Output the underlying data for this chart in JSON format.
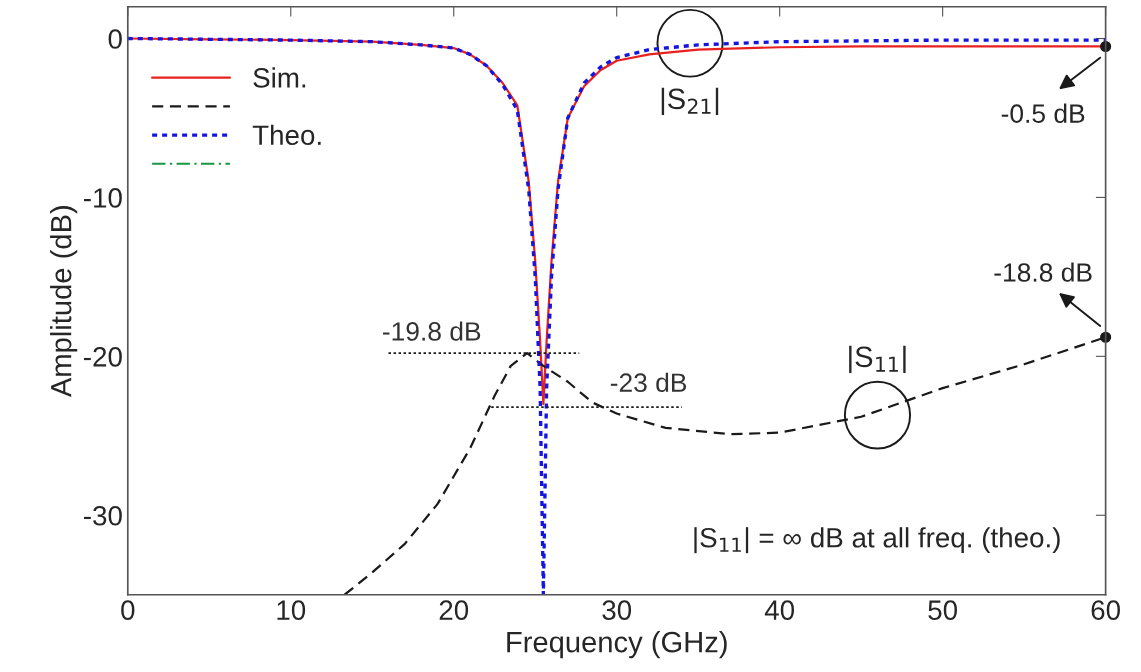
{
  "chart_data": {
    "type": "line",
    "xlabel": "Frequency (GHz)",
    "ylabel": "Amplitude (dB)",
    "xlim": [
      0,
      60
    ],
    "ylim": [
      -35,
      2
    ],
    "xticks": [
      0,
      10,
      20,
      30,
      40,
      50,
      60
    ],
    "yticks": [
      0,
      -10,
      -20,
      -30
    ],
    "grid": false,
    "legend": "top left",
    "series": [
      {
        "name": "Sim.",
        "color": "#e8201e",
        "line_style": "solid",
        "x": [
          0,
          5,
          10,
          15,
          18,
          20,
          21,
          22,
          23,
          23.9,
          24.6,
          25,
          25.3,
          25.5,
          25.7,
          26,
          26.4,
          27,
          28,
          29,
          30,
          32,
          35,
          40,
          45,
          50,
          55,
          60
        ],
        "values": [
          0,
          -0.05,
          -0.1,
          -0.2,
          -0.4,
          -0.6,
          -1,
          -1.7,
          -2.8,
          -4.2,
          -9,
          -14,
          -19,
          -23,
          -19,
          -14,
          -9,
          -5,
          -3,
          -2,
          -1.4,
          -1,
          -0.7,
          -0.55,
          -0.5,
          -0.5,
          -0.5,
          -0.5
        ]
      },
      {
        "color": "#1a1a1a",
        "line_style": "dashed",
        "x": [
          13.3,
          15,
          17,
          19,
          21,
          22.5,
          23.5,
          24.5,
          25.5,
          27,
          28.5,
          30,
          33,
          37,
          40,
          45,
          50,
          55,
          60
        ],
        "values": [
          -35,
          -33.6,
          -31.8,
          -29.3,
          -25.8,
          -22.5,
          -20.6,
          -19.8,
          -20.6,
          -21.6,
          -22.9,
          -23.6,
          -24.5,
          -24.9,
          -24.8,
          -23.8,
          -22,
          -20.5,
          -18.8
        ]
      },
      {
        "name": "Theo.",
        "color": "#1515e0",
        "line_style": "dotted",
        "x": [
          0,
          5,
          10,
          15,
          18,
          20,
          21,
          22,
          23,
          23.9,
          24.6,
          25,
          25.3,
          25.5,
          25.7,
          26,
          26.4,
          27,
          28,
          29,
          30,
          32,
          35,
          40,
          45,
          50,
          55,
          60
        ],
        "values": [
          0,
          -0.05,
          -0.1,
          -0.2,
          -0.4,
          -0.6,
          -1,
          -1.7,
          -2.9,
          -4.5,
          -9.5,
          -15,
          -22,
          -35,
          -22,
          -15,
          -9.5,
          -5,
          -2.8,
          -1.8,
          -1.2,
          -0.7,
          -0.4,
          -0.2,
          -0.15,
          -0.1,
          -0.1,
          -0.1
        ]
      },
      {
        "color": "#1a9641",
        "line_style": "dashdot"
      },
      {
        "color": "#1a1a1a",
        "line_style": "dotted",
        "x": [
          16,
          27.7
        ],
        "values": [
          -19.8,
          -19.8
        ]
      },
      {
        "color": "#1a1a1a",
        "line_style": "dotted",
        "x": [
          22.3,
          34
        ],
        "values": [
          -23.2,
          -23.2
        ]
      }
    ],
    "annotations": [
      {
        "text": "|S$_{21}$|",
        "x": 34.5,
        "y": -0.3
      },
      {
        "text": "|S$_{11}$|",
        "x": 46,
        "y": -23.7
      },
      {
        "text": "-0.5 dB",
        "x": 60,
        "y": -0.5
      },
      {
        "text": "-18.8 dB",
        "x": 60,
        "y": -18.8
      },
      {
        "text": "-19.8 dB",
        "x": 19.5,
        "y": -19.8
      },
      {
        "text": "-23 dB",
        "x": 34,
        "y": -23.2
      },
      "|S$_{11}$| = ∞ dB at all freq. (theo.)"
    ]
  }
}
